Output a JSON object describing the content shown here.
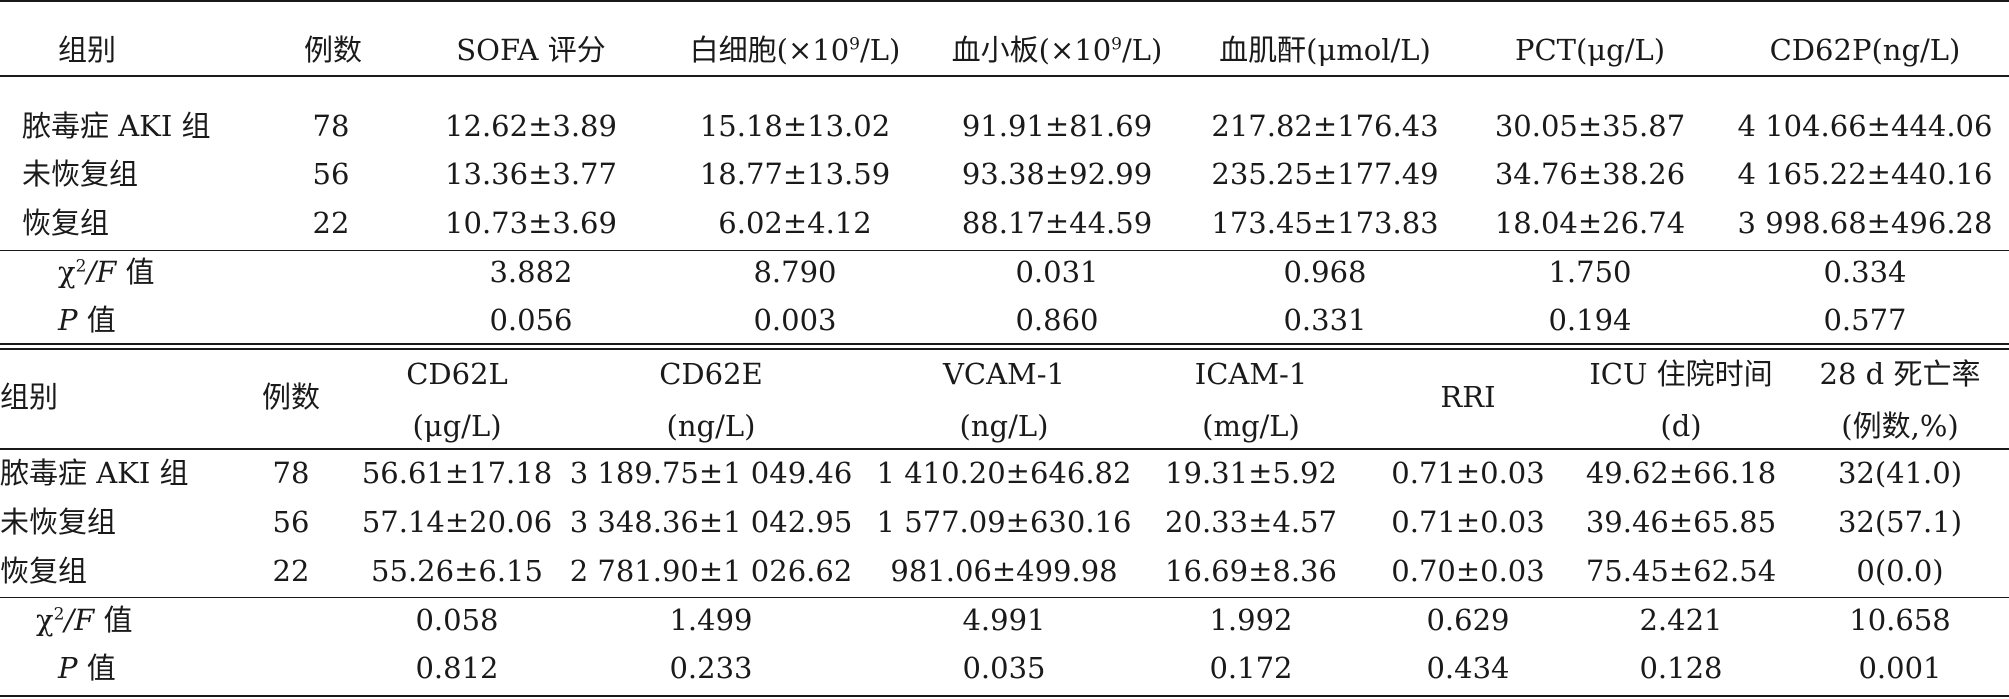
{
  "table1": {
    "headers": {
      "group": "组别",
      "n": "例数",
      "sofa": "SOFA 评分",
      "wbc_pre": "白细胞(×10",
      "wbc_sup": "9",
      "wbc_post": "/L)",
      "plt_pre": "血小板(×10",
      "plt_sup": "9",
      "plt_post": "/L)",
      "scr": "血肌酐(μmol/L)",
      "pct": "PCT(μg/L)",
      "cd62p": "CD62P(ng/L)"
    },
    "rows": [
      {
        "group": "脓毒症 AKI 组",
        "n": "78",
        "sofa": "12.62±3.89",
        "wbc": "15.18±13.02",
        "plt": "91.91±81.69",
        "scr": "217.82±176.43",
        "pct": "30.05±35.87",
        "cd62p": "4 104.66±444.06"
      },
      {
        "group": "未恢复组",
        "n": "56",
        "sofa": "13.36±3.77",
        "wbc": "18.77±13.59",
        "plt": "93.38±92.99",
        "scr": "235.25±177.49",
        "pct": "34.76±38.26",
        "cd62p": "4 165.22±440.16"
      },
      {
        "group": "恢复组",
        "n": "22",
        "sofa": "10.73±3.69",
        "wbc": "6.02±4.12",
        "plt": "88.17±44.59",
        "scr": "173.45±173.83",
        "pct": "18.04±26.74",
        "cd62p": "3 998.68±496.28"
      }
    ],
    "stat_row": {
      "label_chi": "χ",
      "label_sup": "2",
      "label_rest": "/F",
      "label_val": " 值",
      "sofa": "3.882",
      "wbc": "8.790",
      "plt": "0.031",
      "scr": "0.968",
      "pct": "1.750",
      "cd62p": "0.334"
    },
    "p_row": {
      "label_p": "P",
      "label_val": " 值",
      "sofa": "0.056",
      "wbc": "0.003",
      "plt": "0.860",
      "scr": "0.331",
      "pct": "0.194",
      "cd62p": "0.577"
    }
  },
  "table2": {
    "headers": {
      "group": "组别",
      "n": "例数",
      "cd62l": "CD62L",
      "cd62l_unit": "(μg/L)",
      "cd62e": "CD62E",
      "cd62e_unit": "(ng/L)",
      "vcam": "VCAM-1",
      "vcam_unit": "(ng/L)",
      "icam": "ICAM-1",
      "icam_unit": "(mg/L)",
      "rri": "RRI",
      "icu": "ICU 住院时间",
      "icu_unit": "(d)",
      "mort": "28 d 死亡率",
      "mort_unit": "(例数,%)"
    },
    "rows": [
      {
        "group": "脓毒症 AKI 组",
        "n": "78",
        "cd62l": "56.61±17.18",
        "cd62e": "3 189.75±1 049.46",
        "vcam": "1 410.20±646.82",
        "icam": "19.31±5.92",
        "rri": "0.71±0.03",
        "icu": "49.62±66.18",
        "mort": "32(41.0)"
      },
      {
        "group": "未恢复组",
        "n": "56",
        "cd62l": "57.14±20.06",
        "cd62e": "3 348.36±1 042.95",
        "vcam": "1 577.09±630.16",
        "icam": "20.33±4.57",
        "rri": "0.71±0.03",
        "icu": "39.46±65.85",
        "mort": "32(57.1)"
      },
      {
        "group": "恢复组",
        "n": "22",
        "cd62l": "55.26±6.15",
        "cd62e": "2 781.90±1 026.62",
        "vcam": "981.06±499.98",
        "icam": "16.69±8.36",
        "rri": "0.70±0.03",
        "icu": "75.45±62.54",
        "mort": "0(0.0)"
      }
    ],
    "stat_row": {
      "label_chi": "χ",
      "label_sup": "2",
      "label_rest": "/F",
      "label_val": " 值",
      "cd62l": "0.058",
      "cd62e": "1.499",
      "vcam": "4.991",
      "icam": "1.992",
      "rri": "0.629",
      "icu": "2.421",
      "mort": "10.658"
    },
    "p_row": {
      "label_p": "P",
      "label_val": " 值",
      "cd62l": "0.812",
      "cd62e": "0.233",
      "vcam": "0.035",
      "icam": "0.172",
      "rri": "0.434",
      "icu": "0.128",
      "mort": "0.001"
    }
  }
}
